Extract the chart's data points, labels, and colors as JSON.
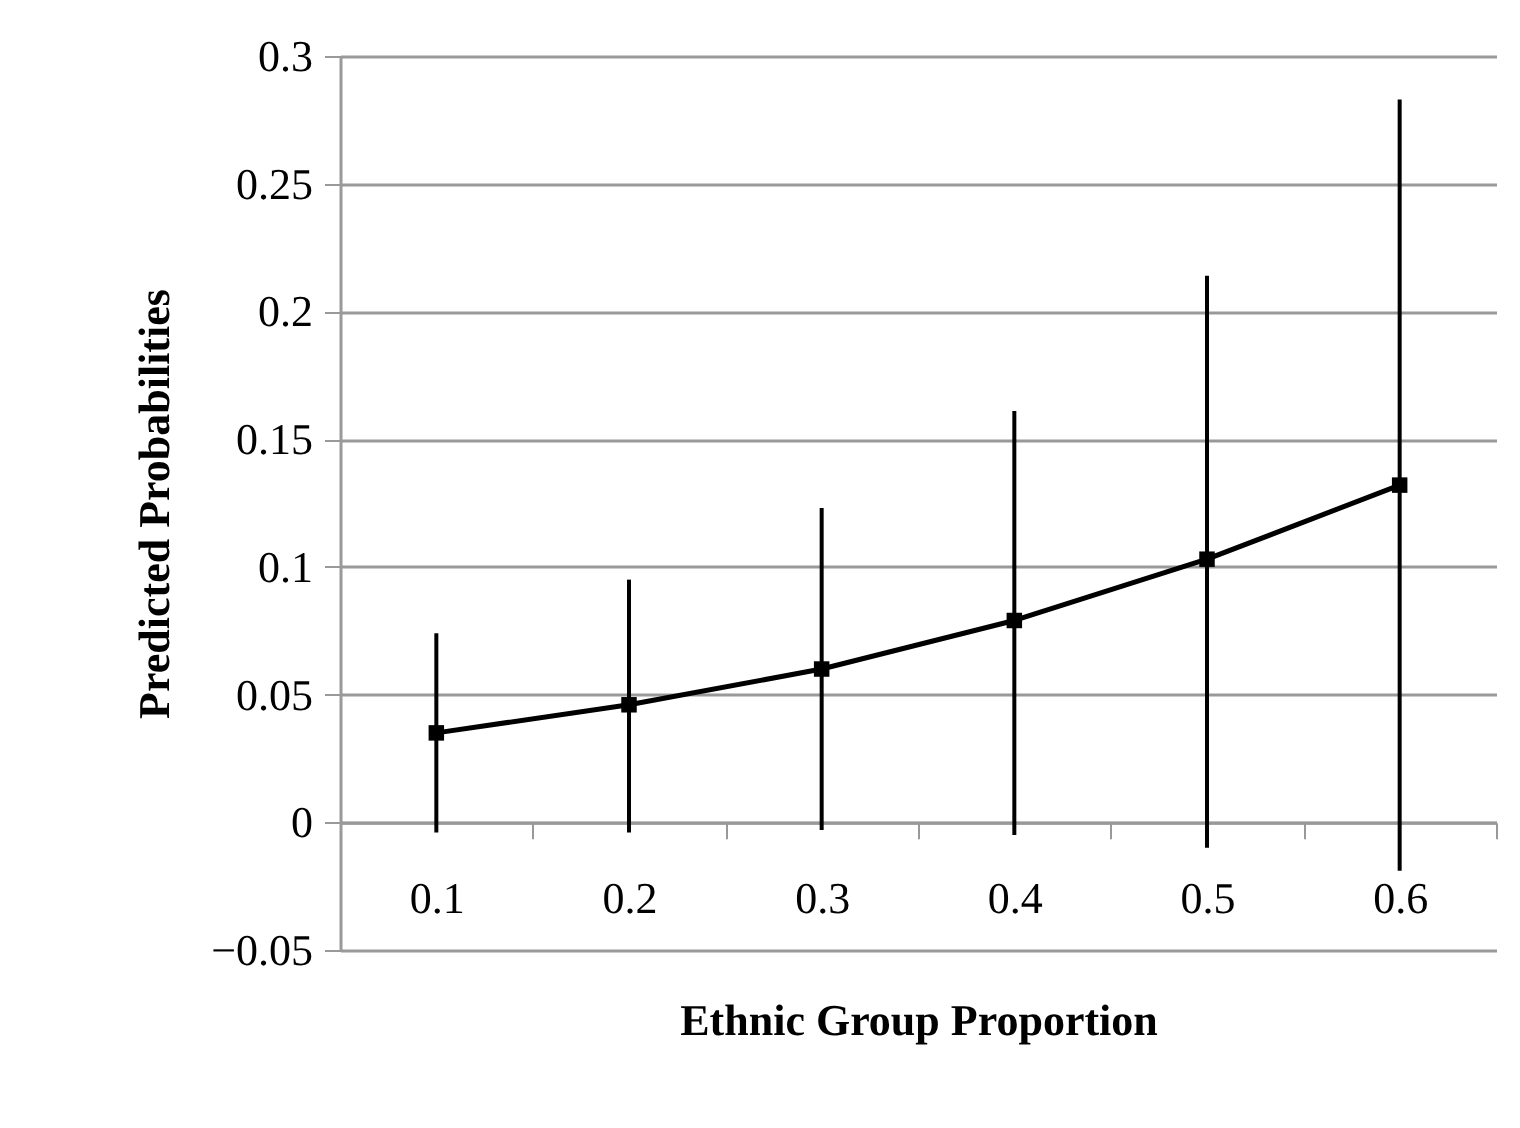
{
  "chart_data": {
    "type": "line",
    "xlabel": "Ethnic Group Proportion",
    "ylabel": "Predicted Probabilities",
    "categories": [
      "0.1",
      "0.2",
      "0.3",
      "0.4",
      "0.5",
      "0.6"
    ],
    "series": [
      {
        "color": "#000000",
        "values": [
          0.035,
          0.046,
          0.06,
          0.079,
          0.103,
          0.132
        ],
        "errors": [
          [
            -0.004,
            0.074
          ],
          [
            -0.004,
            0.095
          ],
          [
            -0.003,
            0.123
          ],
          [
            -0.005,
            0.161
          ],
          [
            -0.01,
            0.214
          ],
          [
            -0.019,
            0.283
          ]
        ]
      }
    ],
    "ylim": [
      -0.05,
      0.3
    ],
    "yticks": [
      -0.05,
      0,
      0.05,
      0.1,
      0.15,
      0.2,
      0.25,
      0.3
    ],
    "grid": "y",
    "marker": "square",
    "line_style": "solid"
  }
}
